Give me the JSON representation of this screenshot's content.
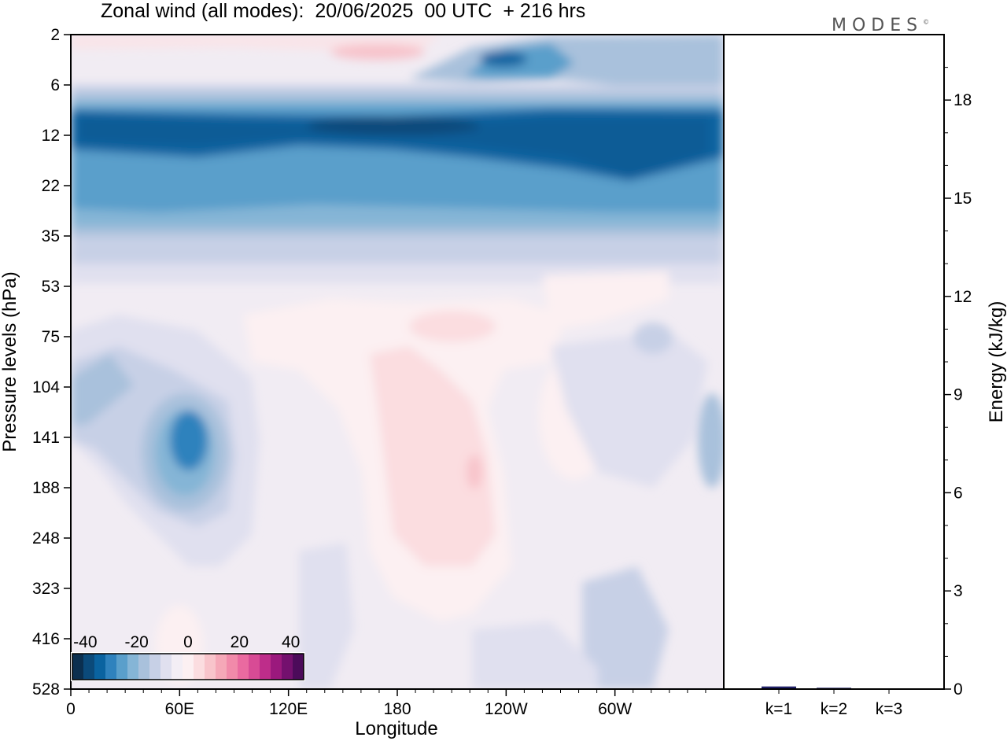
{
  "chart_data": [
    {
      "type": "heatmap",
      "title": "Zonal wind (all modes):  20/06/2025  00 UTC  + 216 hrs",
      "xlabel": "Longitude",
      "ylabel": "Pressure levels (hPa)",
      "x_ticks": [
        "0",
        "60E",
        "120E",
        "180",
        "120W",
        "60W"
      ],
      "x_tick_lon": [
        0,
        60,
        120,
        180,
        240,
        300
      ],
      "xlim": [
        0,
        360
      ],
      "y_ticks": [
        "2",
        "6",
        "12",
        "22",
        "35",
        "53",
        "75",
        "104",
        "141",
        "188",
        "248",
        "323",
        "416",
        "528"
      ],
      "colorbar": {
        "labels": [
          "-40",
          "-20",
          "0",
          "20",
          "40"
        ],
        "range": [
          -45,
          45
        ],
        "colors": [
          "#0b2f4f",
          "#0b4a7a",
          "#0a63a0",
          "#2f82bd",
          "#5a9fcb",
          "#85b5d6",
          "#a9c1dc",
          "#c7d0e6",
          "#e0e0ef",
          "#f3eef5",
          "#fcf0f2",
          "#fbdde0",
          "#f8c4cb",
          "#f5a8b8",
          "#f18aaa",
          "#ea6aa0",
          "#d84b95",
          "#be2d8a",
          "#9b197d",
          "#74106e",
          "#4c0b5a"
        ]
      },
      "features": [
        {
          "lon": 200,
          "lev": 2.2,
          "value": 12
        },
        {
          "lon": 240,
          "lev": 3.5,
          "value": -30
        },
        {
          "lon": 160,
          "lev": 12,
          "value": -35
        },
        {
          "lon": 320,
          "lev": 16,
          "value": -33
        },
        {
          "lon": 60,
          "lev": 18,
          "value": -28
        },
        {
          "lon": 220,
          "lev": 24,
          "value": -25
        },
        {
          "lon": 200,
          "lev": 75,
          "value": 6
        },
        {
          "lon": 200,
          "lev": 170,
          "value": 8
        },
        {
          "lon": 60,
          "lev": 141,
          "value": -30
        },
        {
          "lon": 20,
          "lev": 104,
          "value": -15
        },
        {
          "lon": 300,
          "lev": 360,
          "value": -10
        }
      ]
    },
    {
      "type": "bar",
      "ylabel": "Energy (kJ/kg)",
      "categories": [
        "k=1",
        "k=2",
        "k=3"
      ],
      "values": [
        0.08,
        0.04,
        0.02
      ],
      "ylim": [
        0,
        20
      ],
      "y_ticks": [
        "0",
        "3",
        "6",
        "9",
        "12",
        "15",
        "18"
      ],
      "y_tick_values": [
        0,
        3,
        6,
        9,
        12,
        15,
        18
      ]
    }
  ],
  "logo": {
    "text": "MODES",
    "mark": "©"
  }
}
